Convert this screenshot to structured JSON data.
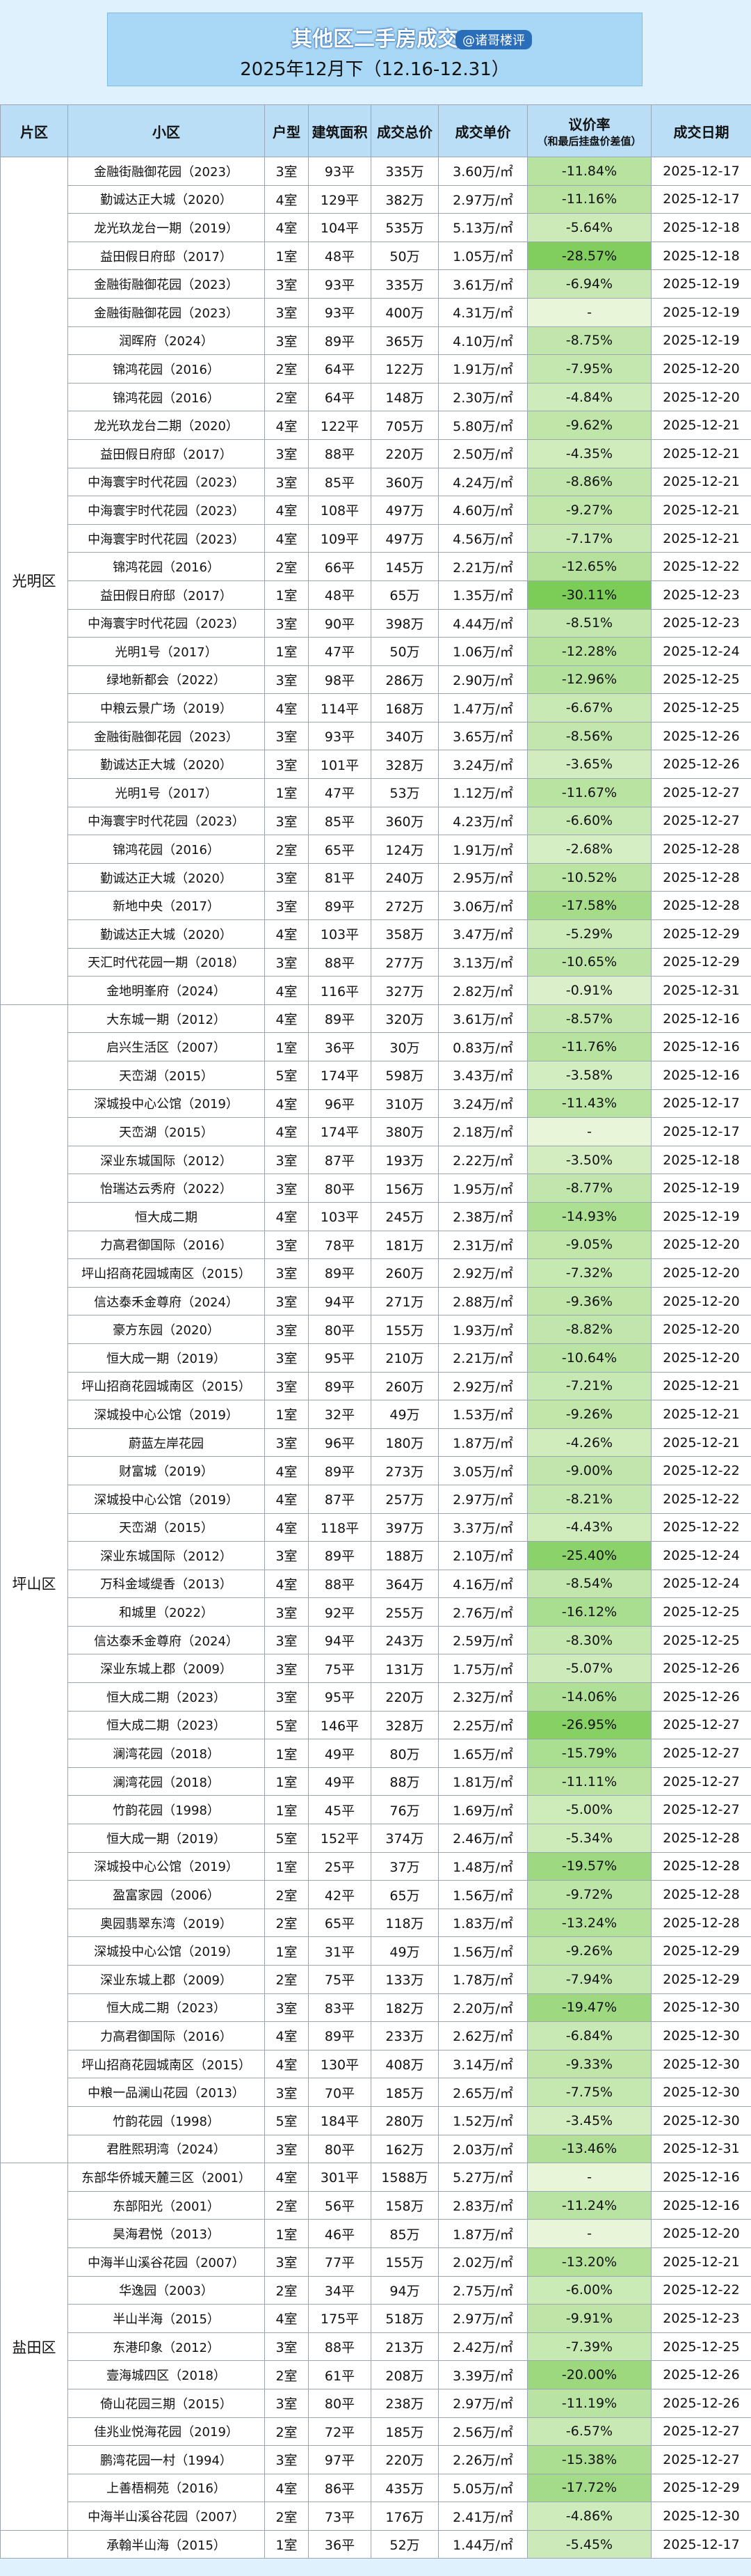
{
  "header": {
    "title": "其他区二手房成交",
    "handle": "@诸哥楼评",
    "subtitle": "2025年12月下（12.16-12.31）"
  },
  "columns": [
    "片区",
    "小区",
    "户型",
    "建筑面积",
    "成交总价",
    "成交单价",
    "议价率",
    "成交日期"
  ],
  "rate_column_note": "（和最后挂盘价差值）",
  "sections": [
    {
      "district": "光明区",
      "rows": [
        [
          "金融街融御花园（2023）",
          "3室",
          "93平",
          "335万",
          "3.60万/㎡",
          "-11.84%",
          "2025-12-17"
        ],
        [
          "勤诚达正大城（2020）",
          "4室",
          "129平",
          "382万",
          "2.97万/㎡",
          "-11.16%",
          "2025-12-17"
        ],
        [
          "龙光玖龙台一期（2019）",
          "4室",
          "104平",
          "535万",
          "5.13万/㎡",
          "-5.64%",
          "2025-12-18"
        ],
        [
          "益田假日府邸（2017）",
          "1室",
          "48平",
          "50万",
          "1.05万/㎡",
          "-28.57%",
          "2025-12-18"
        ],
        [
          "金融街融御花园（2023）",
          "3室",
          "93平",
          "335万",
          "3.61万/㎡",
          "-6.94%",
          "2025-12-19"
        ],
        [
          "金融街融御花园（2023）",
          "3室",
          "93平",
          "400万",
          "4.31万/㎡",
          "-",
          "2025-12-19"
        ],
        [
          "润晖府（2024）",
          "3室",
          "89平",
          "365万",
          "4.10万/㎡",
          "-8.75%",
          "2025-12-19"
        ],
        [
          "锦鸿花园（2016）",
          "2室",
          "64平",
          "122万",
          "1.91万/㎡",
          "-7.95%",
          "2025-12-20"
        ],
        [
          "锦鸿花园（2016）",
          "2室",
          "64平",
          "148万",
          "2.30万/㎡",
          "-4.84%",
          "2025-12-20"
        ],
        [
          "龙光玖龙台二期（2020）",
          "4室",
          "122平",
          "705万",
          "5.80万/㎡",
          "-9.62%",
          "2025-12-21"
        ],
        [
          "益田假日府邸（2017）",
          "3室",
          "88平",
          "220万",
          "2.50万/㎡",
          "-4.35%",
          "2025-12-21"
        ],
        [
          "中海寰宇时代花园（2023）",
          "3室",
          "85平",
          "360万",
          "4.24万/㎡",
          "-8.86%",
          "2025-12-21"
        ],
        [
          "中海寰宇时代花园（2023）",
          "4室",
          "108平",
          "497万",
          "4.60万/㎡",
          "-9.27%",
          "2025-12-21"
        ],
        [
          "中海寰宇时代花园（2023）",
          "4室",
          "109平",
          "497万",
          "4.56万/㎡",
          "-7.17%",
          "2025-12-21"
        ],
        [
          "锦鸿花园（2016）",
          "2室",
          "66平",
          "145万",
          "2.21万/㎡",
          "-12.65%",
          "2025-12-22"
        ],
        [
          "益田假日府邸（2017）",
          "1室",
          "48平",
          "65万",
          "1.35万/㎡",
          "-30.11%",
          "2025-12-23"
        ],
        [
          "中海寰宇时代花园（2023）",
          "3室",
          "90平",
          "398万",
          "4.44万/㎡",
          "-8.51%",
          "2025-12-23"
        ],
        [
          "光明1号（2017）",
          "1室",
          "47平",
          "50万",
          "1.06万/㎡",
          "-12.28%",
          "2025-12-24"
        ],
        [
          "绿地新都会（2022）",
          "3室",
          "98平",
          "286万",
          "2.90万/㎡",
          "-12.96%",
          "2025-12-25"
        ],
        [
          "中粮云景广场（2019）",
          "4室",
          "114平",
          "168万",
          "1.47万/㎡",
          "-6.67%",
          "2025-12-25"
        ],
        [
          "金融街融御花园（2023）",
          "3室",
          "93平",
          "340万",
          "3.65万/㎡",
          "-8.56%",
          "2025-12-26"
        ],
        [
          "勤诚达正大城（2020）",
          "3室",
          "101平",
          "328万",
          "3.24万/㎡",
          "-3.65%",
          "2025-12-26"
        ],
        [
          "光明1号（2017）",
          "1室",
          "47平",
          "53万",
          "1.12万/㎡",
          "-11.67%",
          "2025-12-27"
        ],
        [
          "中海寰宇时代花园（2023）",
          "3室",
          "85平",
          "360万",
          "4.23万/㎡",
          "-6.60%",
          "2025-12-27"
        ],
        [
          "锦鸿花园（2016）",
          "2室",
          "65平",
          "124万",
          "1.91万/㎡",
          "-2.68%",
          "2025-12-28"
        ],
        [
          "勤诚达正大城（2020）",
          "3室",
          "81平",
          "240万",
          "2.95万/㎡",
          "-10.52%",
          "2025-12-28"
        ],
        [
          "新地中央（2017）",
          "3室",
          "89平",
          "272万",
          "3.06万/㎡",
          "-17.58%",
          "2025-12-28"
        ],
        [
          "勤诚达正大城（2020）",
          "4室",
          "103平",
          "358万",
          "3.47万/㎡",
          "-5.29%",
          "2025-12-29"
        ],
        [
          "天汇时代花园一期（2018）",
          "3室",
          "88平",
          "277万",
          "3.13万/㎡",
          "-10.65%",
          "2025-12-29"
        ],
        [
          "金地明峯府（2024）",
          "4室",
          "116平",
          "327万",
          "2.82万/㎡",
          "-0.91%",
          "2025-12-31"
        ]
      ]
    },
    {
      "district": "坪山区",
      "rows": [
        [
          "大东城一期（2012）",
          "4室",
          "89平",
          "320万",
          "3.61万/㎡",
          "-8.57%",
          "2025-12-16"
        ],
        [
          "启兴生活区（2007）",
          "1室",
          "36平",
          "30万",
          "0.83万/㎡",
          "-11.76%",
          "2025-12-16"
        ],
        [
          "天峦湖（2015）",
          "5室",
          "174平",
          "598万",
          "3.43万/㎡",
          "-3.58%",
          "2025-12-16"
        ],
        [
          "深城投中心公馆（2019）",
          "4室",
          "96平",
          "310万",
          "3.24万/㎡",
          "-11.43%",
          "2025-12-17"
        ],
        [
          "天峦湖（2015）",
          "4室",
          "174平",
          "380万",
          "2.18万/㎡",
          "-",
          "2025-12-17"
        ],
        [
          "深业东城国际（2012）",
          "3室",
          "87平",
          "193万",
          "2.22万/㎡",
          "-3.50%",
          "2025-12-18"
        ],
        [
          "怡瑞达云秀府（2022）",
          "3室",
          "80平",
          "156万",
          "1.95万/㎡",
          "-8.77%",
          "2025-12-19"
        ],
        [
          "恒大成二期",
          "4室",
          "103平",
          "245万",
          "2.38万/㎡",
          "-14.93%",
          "2025-12-19"
        ],
        [
          "力高君御国际（2016）",
          "3室",
          "78平",
          "181万",
          "2.31万/㎡",
          "-9.05%",
          "2025-12-20"
        ],
        [
          "坪山招商花园城南区（2015）",
          "3室",
          "89平",
          "260万",
          "2.92万/㎡",
          "-7.32%",
          "2025-12-20"
        ],
        [
          "信达泰禾金尊府（2024）",
          "3室",
          "94平",
          "271万",
          "2.88万/㎡",
          "-9.36%",
          "2025-12-20"
        ],
        [
          "豪方东园（2020）",
          "3室",
          "80平",
          "155万",
          "1.93万/㎡",
          "-8.82%",
          "2025-12-20"
        ],
        [
          "恒大成一期（2019）",
          "3室",
          "95平",
          "210万",
          "2.21万/㎡",
          "-10.64%",
          "2025-12-20"
        ],
        [
          "坪山招商花园城南区（2015）",
          "3室",
          "89平",
          "260万",
          "2.92万/㎡",
          "-7.21%",
          "2025-12-21"
        ],
        [
          "深城投中心公馆（2019）",
          "1室",
          "32平",
          "49万",
          "1.53万/㎡",
          "-9.26%",
          "2025-12-21"
        ],
        [
          "蔚蓝左岸花园",
          "3室",
          "96平",
          "180万",
          "1.87万/㎡",
          "-4.26%",
          "2025-12-21"
        ],
        [
          "财富城（2019）",
          "4室",
          "89平",
          "273万",
          "3.05万/㎡",
          "-9.00%",
          "2025-12-22"
        ],
        [
          "深城投中心公馆（2019）",
          "4室",
          "87平",
          "257万",
          "2.97万/㎡",
          "-8.21%",
          "2025-12-22"
        ],
        [
          "天峦湖（2015）",
          "4室",
          "118平",
          "397万",
          "3.37万/㎡",
          "-4.43%",
          "2025-12-22"
        ],
        [
          "深业东城国际（2012）",
          "3室",
          "89平",
          "188万",
          "2.10万/㎡",
          "-25.40%",
          "2025-12-24"
        ],
        [
          "万科金域缇香（2013）",
          "4室",
          "88平",
          "364万",
          "4.16万/㎡",
          "-8.54%",
          "2025-12-24"
        ],
        [
          "和城里（2022）",
          "3室",
          "92平",
          "255万",
          "2.76万/㎡",
          "-16.12%",
          "2025-12-25"
        ],
        [
          "信达泰禾金尊府（2024）",
          "3室",
          "94平",
          "243万",
          "2.59万/㎡",
          "-8.30%",
          "2025-12-25"
        ],
        [
          "深业东城上郡（2009）",
          "3室",
          "75平",
          "131万",
          "1.75万/㎡",
          "-5.07%",
          "2025-12-26"
        ],
        [
          "恒大成二期（2023）",
          "3室",
          "95平",
          "220万",
          "2.32万/㎡",
          "-14.06%",
          "2025-12-26"
        ],
        [
          "恒大成二期（2023）",
          "5室",
          "146平",
          "328万",
          "2.25万/㎡",
          "-26.95%",
          "2025-12-27"
        ],
        [
          "澜湾花园（2018）",
          "1室",
          "49平",
          "80万",
          "1.65万/㎡",
          "-15.79%",
          "2025-12-27"
        ],
        [
          "澜湾花园（2018）",
          "1室",
          "49平",
          "88万",
          "1.81万/㎡",
          "-11.11%",
          "2025-12-27"
        ],
        [
          "竹韵花园（1998）",
          "1室",
          "45平",
          "76万",
          "1.69万/㎡",
          "-5.00%",
          "2025-12-27"
        ],
        [
          "恒大成一期（2019）",
          "5室",
          "152平",
          "374万",
          "2.46万/㎡",
          "-5.34%",
          "2025-12-28"
        ],
        [
          "深城投中心公馆（2019）",
          "1室",
          "25平",
          "37万",
          "1.48万/㎡",
          "-19.57%",
          "2025-12-28"
        ],
        [
          "盈富家园（2006）",
          "2室",
          "42平",
          "65万",
          "1.56万/㎡",
          "-9.72%",
          "2025-12-28"
        ],
        [
          "奥园翡翠东湾（2019）",
          "2室",
          "65平",
          "118万",
          "1.83万/㎡",
          "-13.24%",
          "2025-12-28"
        ],
        [
          "深城投中心公馆（2019）",
          "1室",
          "31平",
          "49万",
          "1.56万/㎡",
          "-9.26%",
          "2025-12-29"
        ],
        [
          "深业东城上郡（2009）",
          "2室",
          "75平",
          "133万",
          "1.78万/㎡",
          "-7.94%",
          "2025-12-29"
        ],
        [
          "恒大成二期（2023）",
          "3室",
          "83平",
          "182万",
          "2.20万/㎡",
          "-19.47%",
          "2025-12-30"
        ],
        [
          "力高君御国际（2016）",
          "4室",
          "89平",
          "233万",
          "2.62万/㎡",
          "-6.84%",
          "2025-12-30"
        ],
        [
          "坪山招商花园城南区（2015）",
          "4室",
          "130平",
          "408万",
          "3.14万/㎡",
          "-9.33%",
          "2025-12-30"
        ],
        [
          "中粮一品澜山花园（2013）",
          "3室",
          "70平",
          "185万",
          "2.65万/㎡",
          "-7.75%",
          "2025-12-30"
        ],
        [
          "竹韵花园（1998）",
          "5室",
          "184平",
          "280万",
          "1.52万/㎡",
          "-3.45%",
          "2025-12-30"
        ],
        [
          "君胜熙玥湾（2024）",
          "3室",
          "80平",
          "162万",
          "2.03万/㎡",
          "-13.46%",
          "2025-12-31"
        ]
      ]
    },
    {
      "district": "盐田区",
      "rows": [
        [
          "东部华侨城天麓三区（2001）",
          "4室",
          "301平",
          "1588万",
          "5.27万/㎡",
          "-",
          "2025-12-16"
        ],
        [
          "东部阳光（2001）",
          "2室",
          "56平",
          "158万",
          "2.83万/㎡",
          "-11.24%",
          "2025-12-16"
        ],
        [
          "昊海君悦（2013）",
          "1室",
          "46平",
          "85万",
          "1.87万/㎡",
          "-",
          "2025-12-20"
        ],
        [
          "中海半山溪谷花园（2007）",
          "3室",
          "77平",
          "155万",
          "2.02万/㎡",
          "-13.20%",
          "2025-12-21"
        ],
        [
          "华逸园（2003）",
          "2室",
          "34平",
          "94万",
          "2.75万/㎡",
          "-6.00%",
          "2025-12-22"
        ],
        [
          "半山半海（2015）",
          "4室",
          "175平",
          "518万",
          "2.97万/㎡",
          "-9.91%",
          "2025-12-23"
        ],
        [
          "东港印象（2012）",
          "3室",
          "88平",
          "213万",
          "2.42万/㎡",
          "-7.39%",
          "2025-12-25"
        ],
        [
          "壹海城四区（2018）",
          "2室",
          "61平",
          "208万",
          "3.39万/㎡",
          "-20.00%",
          "2025-12-26"
        ],
        [
          "倚山花园三期（2015）",
          "3室",
          "80平",
          "238万",
          "2.97万/㎡",
          "-11.19%",
          "2025-12-26"
        ],
        [
          "佳兆业悦海花园（2019）",
          "2室",
          "72平",
          "185万",
          "2.56万/㎡",
          "-6.57%",
          "2025-12-27"
        ],
        [
          "鹏湾花园一村（1994）",
          "3室",
          "97平",
          "220万",
          "2.26万/㎡",
          "-15.38%",
          "2025-12-27"
        ],
        [
          "上善梧桐苑（2016）",
          "4室",
          "86平",
          "435万",
          "5.05万/㎡",
          "-17.72%",
          "2025-12-29"
        ],
        [
          "中海半山溪谷花园（2007）",
          "2室",
          "73平",
          "176万",
          "2.41万/㎡",
          "-4.86%",
          "2025-12-30"
        ]
      ]
    },
    {
      "rows": [
        [
          "承翰半山海（2015）",
          "1室",
          "36平",
          "52万",
          "1.44万/㎡",
          "-5.45%",
          "2025-12-17"
        ]
      ]
    }
  ]
}
